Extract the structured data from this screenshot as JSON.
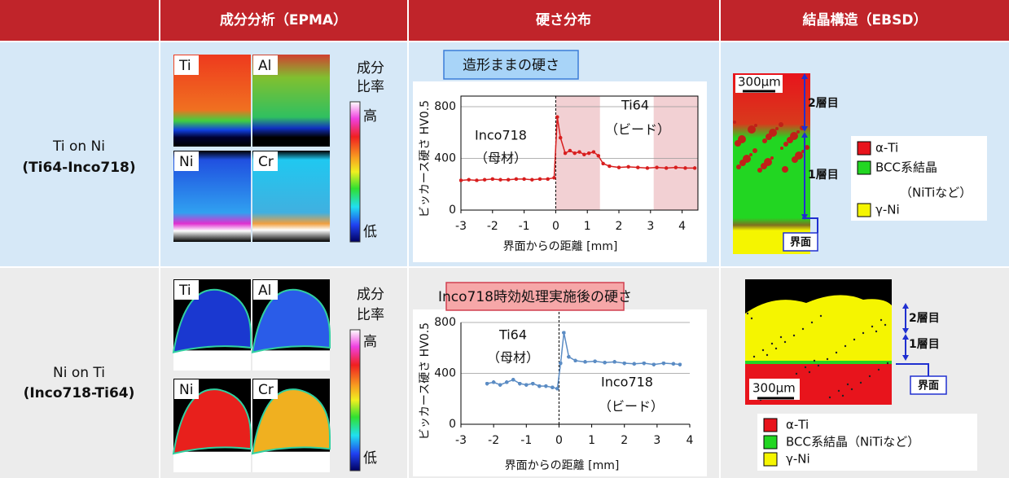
{
  "header": {
    "columns": [
      "成分分析（EPMA）",
      "硬さ分布",
      "結晶構造（EBSD）"
    ]
  },
  "rows": [
    {
      "label": [
        "Ti on Ni",
        "(Ti64-Inco718)"
      ],
      "epma": {
        "panels": [
          "Ti",
          "Al",
          "Ni",
          "Cr"
        ],
        "scale_title": [
          "成分",
          "比率"
        ],
        "high": "高",
        "low": "低"
      },
      "ebsd": {
        "scale": "300μm",
        "layers": [
          "2層目",
          "1層目"
        ],
        "interface": "界面",
        "legend": [
          {
            "label": "α-Ti",
            "color": "#e8141c"
          },
          {
            "label": "BCC系結晶",
            "note": "（NiTiなど）",
            "color": "#22d622"
          },
          {
            "label": "γ-Ni",
            "color": "#f5f500"
          }
        ]
      }
    },
    {
      "label": [
        "Ni on Ti",
        "(Inco718-Ti64)"
      ],
      "epma": {
        "panels": [
          "Ti",
          "Al",
          "Ni",
          "Cr"
        ],
        "scale_title": [
          "成分",
          "比率"
        ],
        "high": "高",
        "low": "低"
      },
      "ebsd": {
        "scale": "300μm",
        "layers": [
          "2層目",
          "1層目"
        ],
        "interface": "界面",
        "legend": [
          {
            "label": "α-Ti",
            "color": "#e8141c"
          },
          {
            "label": "BCC系結晶（NiTiなど）",
            "color": "#22d622"
          },
          {
            "label": "γ-Ni",
            "color": "#f5f500"
          }
        ]
      }
    }
  ],
  "chart_data": [
    {
      "type": "line",
      "title": "造形ままの硬さ",
      "x_label": "界面からの距離 [mm]",
      "y_label": "ビッカース硬さ HV0.5",
      "x": [
        -3,
        -2.75,
        -2.5,
        -2.25,
        -2,
        -1.75,
        -1.5,
        -1.25,
        -1,
        -0.75,
        -0.5,
        -0.25,
        -0.05,
        0.05,
        0.15,
        0.3,
        0.45,
        0.6,
        0.75,
        0.9,
        1.05,
        1.2,
        1.35,
        1.5,
        1.7,
        2,
        2.3,
        2.6,
        2.9,
        3.2,
        3.5,
        3.8,
        4.1,
        4.4
      ],
      "values": [
        230,
        235,
        230,
        235,
        240,
        235,
        235,
        240,
        240,
        235,
        240,
        240,
        250,
        720,
        560,
        440,
        460,
        440,
        450,
        430,
        440,
        450,
        420,
        360,
        340,
        330,
        335,
        330,
        325,
        330,
        325,
        330,
        325,
        325
      ],
      "color": "#d81e1e",
      "xlim": [
        -3,
        4.5
      ],
      "ylim": [
        0,
        800
      ],
      "xticks": [
        -3,
        -2,
        -1,
        0,
        1,
        2,
        3,
        4
      ],
      "yticks": [
        0,
        400,
        800
      ],
      "grid": true,
      "shaded_x": [
        [
          0,
          1.4
        ],
        [
          3.1,
          4.5
        ]
      ],
      "shade_color": "#f2d0d3",
      "annotations": [
        "Inco718",
        "（母材）",
        "Ti64",
        "（ビード）"
      ]
    },
    {
      "type": "line",
      "title": "Inco718時効処理実施後の硬さ",
      "x_label": "界面からの距離 [mm]",
      "y_label": "ビッカース硬さ HV0.5",
      "x": [
        -2.2,
        -2,
        -1.8,
        -1.6,
        -1.4,
        -1.2,
        -1,
        -0.8,
        -0.6,
        -0.4,
        -0.2,
        -0.05,
        0.05,
        0.15,
        0.3,
        0.5,
        0.8,
        1.1,
        1.4,
        1.7,
        2,
        2.3,
        2.6,
        2.9,
        3.2,
        3.5,
        3.7
      ],
      "values": [
        320,
        330,
        310,
        330,
        350,
        320,
        310,
        320,
        300,
        300,
        290,
        280,
        480,
        720,
        530,
        500,
        490,
        495,
        485,
        490,
        480,
        475,
        480,
        470,
        480,
        475,
        470
      ],
      "color": "#5b8cc4",
      "xlim": [
        -3,
        4
      ],
      "ylim": [
        0,
        800
      ],
      "xticks": [
        -3,
        -2,
        -1,
        0,
        1,
        2,
        3,
        4
      ],
      "yticks": [
        0,
        400,
        800
      ],
      "grid": true,
      "annotations": [
        "Ti64",
        "（母材）",
        "Inco718",
        "（ビード）"
      ]
    }
  ]
}
